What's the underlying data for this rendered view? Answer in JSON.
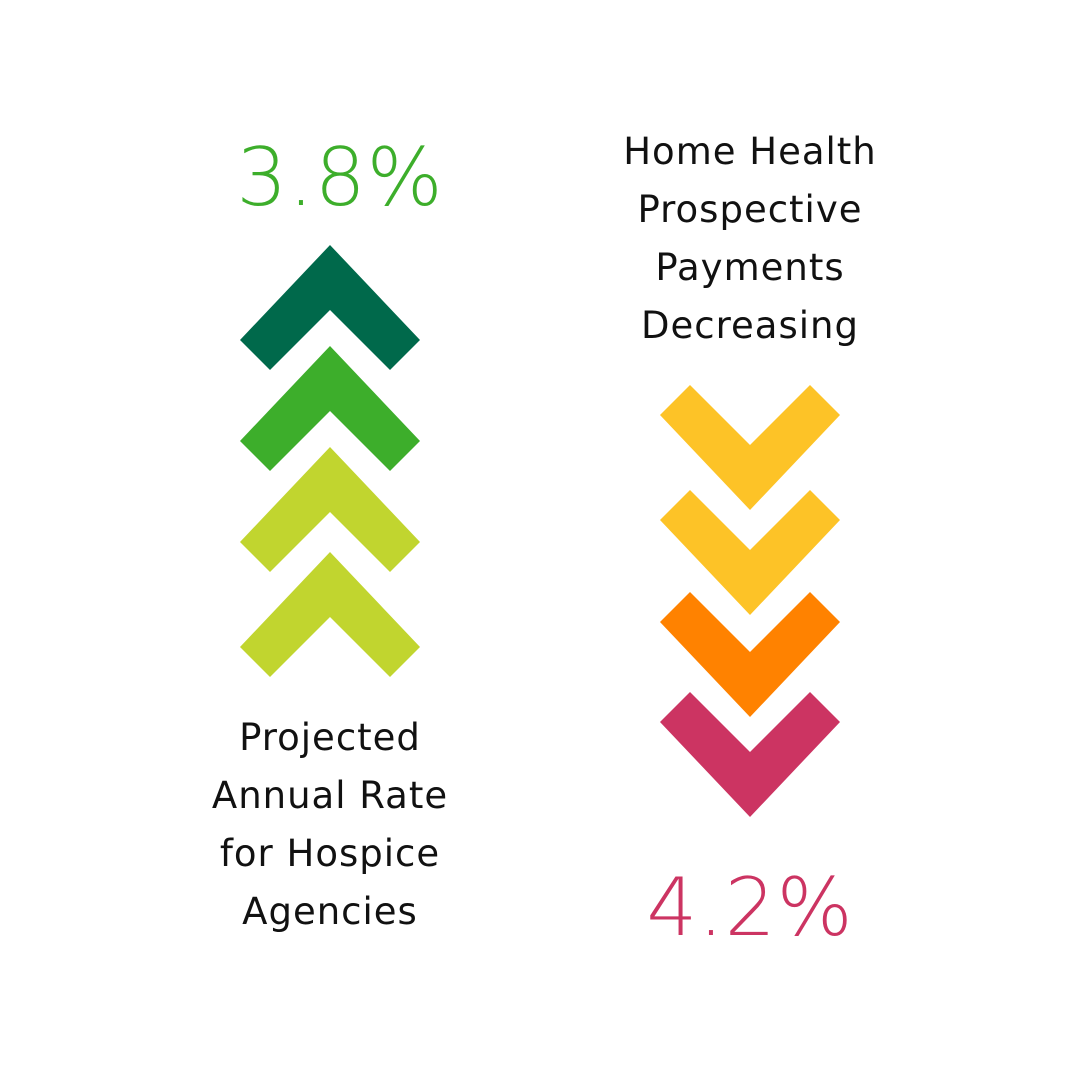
{
  "hospice": {
    "value_text": "3.8%",
    "label": "Projected\nAnnual Rate\nfor Hospice\nAgencies",
    "color": "#3dae2b",
    "direction": "up",
    "arrow_colors": [
      "#00694b",
      "#3dae2b",
      "#c1d52f",
      "#c1d52f"
    ]
  },
  "home_health": {
    "value_text": "4.2%",
    "label": "Home Health\nProspective\nPayments\nDecreasing",
    "color": "#cc3462",
    "direction": "down",
    "arrow_colors": [
      "#fdc327",
      "#fdc327",
      "#ff8200",
      "#cc3462"
    ]
  }
}
